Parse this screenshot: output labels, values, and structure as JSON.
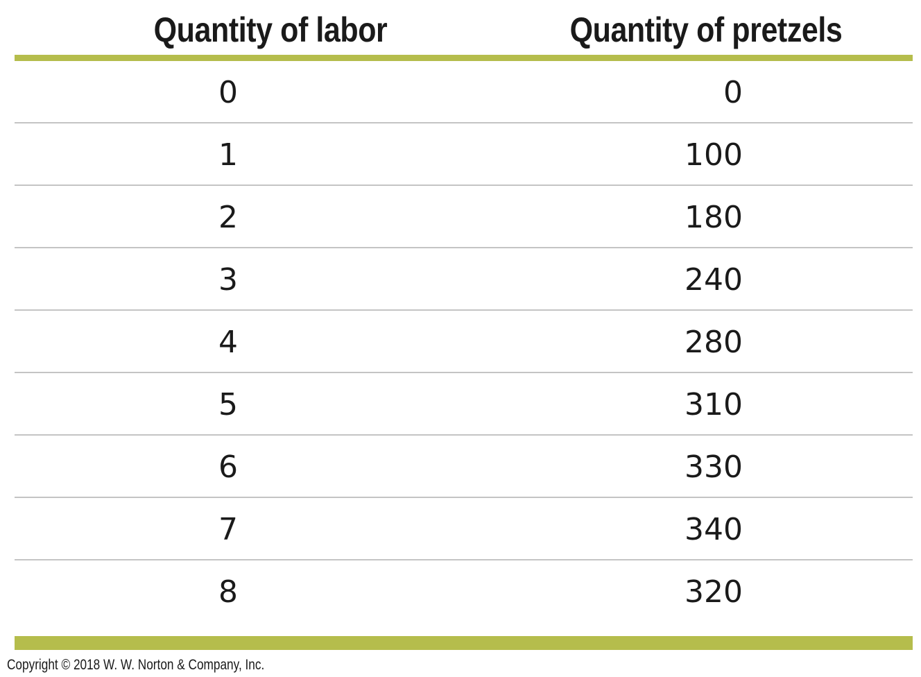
{
  "table": {
    "headers": {
      "labor": "Quantity of labor",
      "pretzels": "Quantity of pretzels"
    },
    "rows": [
      {
        "labor": "0",
        "pretzels": "0"
      },
      {
        "labor": "1",
        "pretzels": "100"
      },
      {
        "labor": "2",
        "pretzels": "180"
      },
      {
        "labor": "3",
        "pretzels": "240"
      },
      {
        "labor": "4",
        "pretzels": "280"
      },
      {
        "labor": "5",
        "pretzels": "310"
      },
      {
        "labor": "6",
        "pretzels": "330"
      },
      {
        "labor": "7",
        "pretzels": "340"
      },
      {
        "labor": "8",
        "pretzels": "320"
      }
    ]
  },
  "footer": {
    "copyright": "Copyright © 2018 W. W. Norton & Company, Inc."
  },
  "colors": {
    "accent_bar": "#b5bd4c",
    "row_separator": "#c4c4c4",
    "text": "#1a1a1a"
  }
}
